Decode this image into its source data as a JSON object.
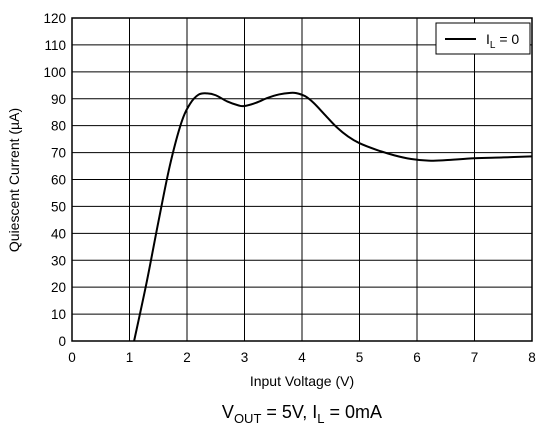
{
  "chart_data": {
    "type": "line",
    "xlabel": "Input Voltage (V)",
    "ylabel": "Quiescent Current (µA)",
    "xlim": [
      0,
      8
    ],
    "ylim": [
      0,
      120
    ],
    "x_ticks": [
      0,
      1,
      2,
      3,
      4,
      5,
      6,
      7,
      8
    ],
    "y_ticks": [
      0,
      10,
      20,
      30,
      40,
      50,
      60,
      70,
      80,
      90,
      100,
      110,
      120
    ],
    "grid": true,
    "legend_position": "top-right",
    "caption": {
      "v_main": "V",
      "v_sub": "OUT",
      "v_rest": " = 5V, ",
      "i_main": "I",
      "i_sub": "L",
      "i_rest": " = 0mA"
    },
    "series": [
      {
        "legend": {
          "main": "I",
          "sub": "L",
          "rest": " = 0"
        },
        "color": "#000000",
        "x": [
          1.08,
          1.3,
          1.5,
          1.7,
          1.9,
          2.05,
          2.2,
          2.35,
          2.5,
          2.7,
          2.9,
          3.0,
          3.2,
          3.4,
          3.6,
          3.8,
          3.9,
          4.05,
          4.2,
          4.4,
          4.6,
          4.8,
          5.0,
          5.3,
          5.6,
          5.9,
          6.2,
          6.5,
          7.0,
          7.5,
          8.0
        ],
        "y": [
          0,
          22,
          44,
          65,
          81,
          88,
          91.5,
          92,
          91.3,
          89,
          87.5,
          87.3,
          88.5,
          90.3,
          91.6,
          92.2,
          92.1,
          91,
          88.5,
          84,
          79.5,
          76,
          73.5,
          71,
          69,
          67.6,
          67,
          67.2,
          67.9,
          68.2,
          68.6
        ]
      }
    ]
  }
}
